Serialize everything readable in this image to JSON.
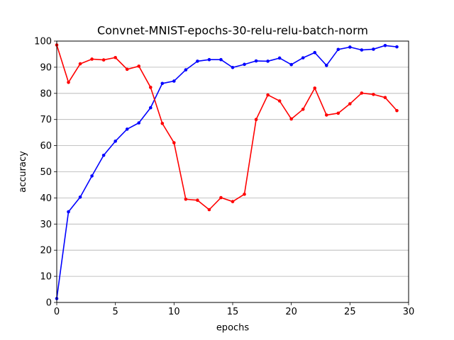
{
  "chart_data": {
    "type": "line",
    "title": "Convnet-MNIST-epochs-30-relu-relu-batch-norm",
    "xlabel": "epochs",
    "ylabel": "accuracy",
    "xlim": [
      0,
      30
    ],
    "ylim": [
      0,
      100
    ],
    "xticks": [
      0,
      5,
      10,
      15,
      20,
      25,
      30
    ],
    "yticks": [
      0,
      10,
      20,
      30,
      40,
      50,
      60,
      70,
      80,
      90,
      100
    ],
    "grid": "horizontal",
    "x": [
      0,
      1,
      2,
      3,
      4,
      5,
      6,
      7,
      8,
      9,
      10,
      11,
      12,
      13,
      14,
      15,
      16,
      17,
      18,
      19,
      20,
      21,
      22,
      23,
      24,
      25,
      26,
      27,
      28,
      29
    ],
    "series": [
      {
        "color": "#0000ff",
        "values": [
          1.5,
          34.7,
          40.3,
          48.4,
          56.3,
          61.7,
          66.3,
          68.7,
          74.5,
          83.8,
          84.7,
          89.0,
          92.3,
          92.9,
          92.9,
          89.9,
          91.1,
          92.4,
          92.3,
          93.5,
          91.0,
          93.6,
          95.6,
          90.7,
          96.8,
          97.7,
          96.6,
          96.9,
          98.3,
          97.8
        ]
      },
      {
        "color": "#ff0000",
        "values": [
          98.5,
          84.2,
          91.3,
          93.1,
          92.8,
          93.7,
          89.2,
          90.4,
          82.3,
          68.5,
          61.1,
          39.5,
          39.1,
          35.5,
          40.1,
          38.6,
          41.4,
          70.0,
          79.4,
          77.1,
          70.2,
          73.9,
          82.0,
          71.7,
          72.4,
          76.0,
          80.1,
          79.6,
          78.4,
          73.4
        ]
      }
    ]
  }
}
